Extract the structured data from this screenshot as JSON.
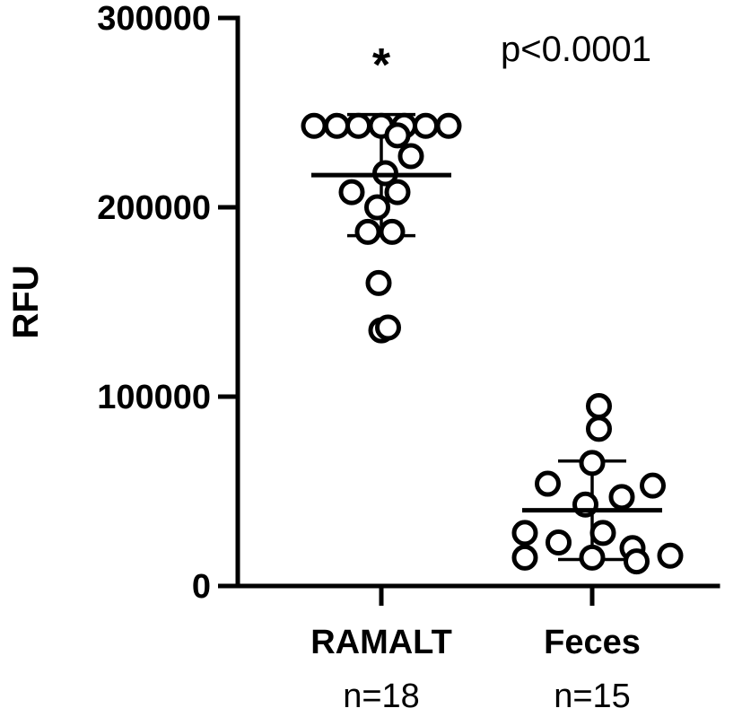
{
  "chart_data": {
    "type": "scatter",
    "ylabel": "RFU",
    "ylim": [
      0,
      300000
    ],
    "yticks": [
      0,
      100000,
      200000,
      300000
    ],
    "ytick_labels": [
      "0",
      "100000",
      "200000",
      "300000"
    ],
    "grid": false,
    "groups": [
      {
        "category": "RAMALT",
        "n_label": "n=18",
        "mean": 217000,
        "sd_low": 185000,
        "sd_high": 249000,
        "points": [
          {
            "offset": -0.5,
            "y": 243000
          },
          {
            "offset": -0.33,
            "y": 243000
          },
          {
            "offset": -0.17,
            "y": 243000
          },
          {
            "offset": 0.0,
            "y": 243000
          },
          {
            "offset": 0.17,
            "y": 243000
          },
          {
            "offset": 0.33,
            "y": 243000
          },
          {
            "offset": 0.5,
            "y": 243000
          },
          {
            "offset": 0.12,
            "y": 238000
          },
          {
            "offset": 0.22,
            "y": 227000
          },
          {
            "offset": 0.03,
            "y": 218000
          },
          {
            "offset": -0.22,
            "y": 208000
          },
          {
            "offset": 0.12,
            "y": 208000
          },
          {
            "offset": -0.03,
            "y": 200000
          },
          {
            "offset": -0.1,
            "y": 187000
          },
          {
            "offset": 0.08,
            "y": 187000
          },
          {
            "offset": -0.02,
            "y": 160000
          },
          {
            "offset": 0.0,
            "y": 135000
          },
          {
            "offset": 0.05,
            "y": 136500
          }
        ]
      },
      {
        "category": "Feces",
        "n_label": "n=15",
        "mean": 40000,
        "sd_low": 14000,
        "sd_high": 66000,
        "points": [
          {
            "offset": 0.05,
            "y": 95000
          },
          {
            "offset": 0.05,
            "y": 83000
          },
          {
            "offset": 0.0,
            "y": 65000
          },
          {
            "offset": -0.33,
            "y": 54000
          },
          {
            "offset": 0.45,
            "y": 53000
          },
          {
            "offset": 0.22,
            "y": 47000
          },
          {
            "offset": -0.05,
            "y": 43000
          },
          {
            "offset": -0.5,
            "y": 28000
          },
          {
            "offset": 0.08,
            "y": 28000
          },
          {
            "offset": -0.25,
            "y": 23000
          },
          {
            "offset": 0.3,
            "y": 20000
          },
          {
            "offset": -0.5,
            "y": 15000
          },
          {
            "offset": 0.0,
            "y": 15000
          },
          {
            "offset": 0.33,
            "y": 13000
          },
          {
            "offset": 0.58,
            "y": 16000
          }
        ]
      }
    ],
    "annotations": {
      "significance": "*",
      "p_value": "p<0.0001"
    }
  }
}
